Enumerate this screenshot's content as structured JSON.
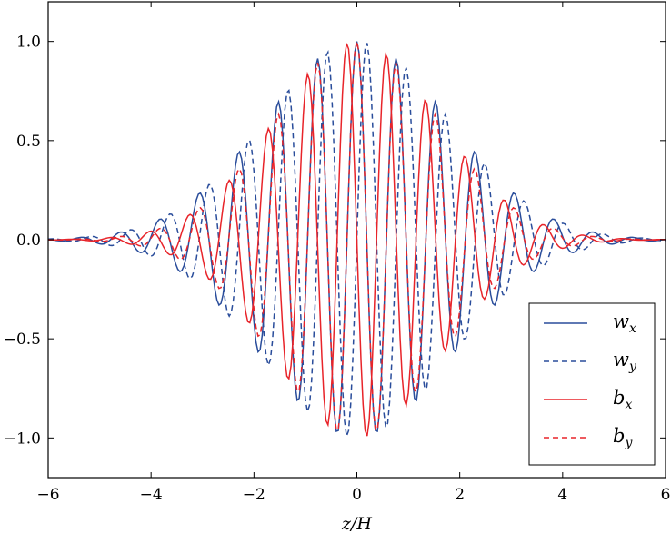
{
  "chart_data": {
    "type": "line",
    "title": "",
    "xlabel": "z/H",
    "ylabel": "",
    "xlim": [
      -6,
      6
    ],
    "ylim": [
      -1.2,
      1.2
    ],
    "xticks": [
      -6,
      -4,
      -2,
      0,
      2,
      4,
      6
    ],
    "xtick_labels": [
      "−6",
      "−4",
      "−2",
      "0",
      "2",
      "4",
      "6"
    ],
    "yticks": [
      -1.0,
      -0.5,
      0.0,
      0.5,
      1.0
    ],
    "ytick_labels": [
      "−1.0",
      "−0.5",
      "0.0",
      "0.5",
      "1.0"
    ],
    "grid": false,
    "legend_position": "bottom-right",
    "series": [
      {
        "name": "w_x",
        "label_main": "w",
        "label_sub": "x",
        "color": "#2a4d9b",
        "dash": "solid",
        "envelope": {
          "amp": 1.0,
          "sigma": 1.8
        },
        "wave": {
          "k": 8.2,
          "phase": 0.0,
          "func": "cos"
        }
      },
      {
        "name": "w_y",
        "label_main": "w",
        "label_sub": "y",
        "color": "#2a4d9b",
        "dash": "dashed",
        "envelope": {
          "amp": 1.0,
          "sigma": 1.8
        },
        "wave": {
          "k": 8.2,
          "phase": 0.0,
          "func": "sin"
        }
      },
      {
        "name": "b_x",
        "label_main": "b",
        "label_sub": "x",
        "color": "#e8242a",
        "dash": "solid",
        "envelope": {
          "amp": 1.0,
          "sigma": 1.6
        },
        "wave": {
          "k": 8.2,
          "phase": 1.5708,
          "func": "cos"
        }
      },
      {
        "name": "b_y",
        "label_main": "b",
        "label_sub": "y",
        "color": "#e8242a",
        "dash": "dashed",
        "envelope": {
          "amp": 1.0,
          "sigma": 1.6
        },
        "wave": {
          "k": 8.2,
          "phase": 1.5708,
          "func": "sin"
        }
      }
    ]
  }
}
